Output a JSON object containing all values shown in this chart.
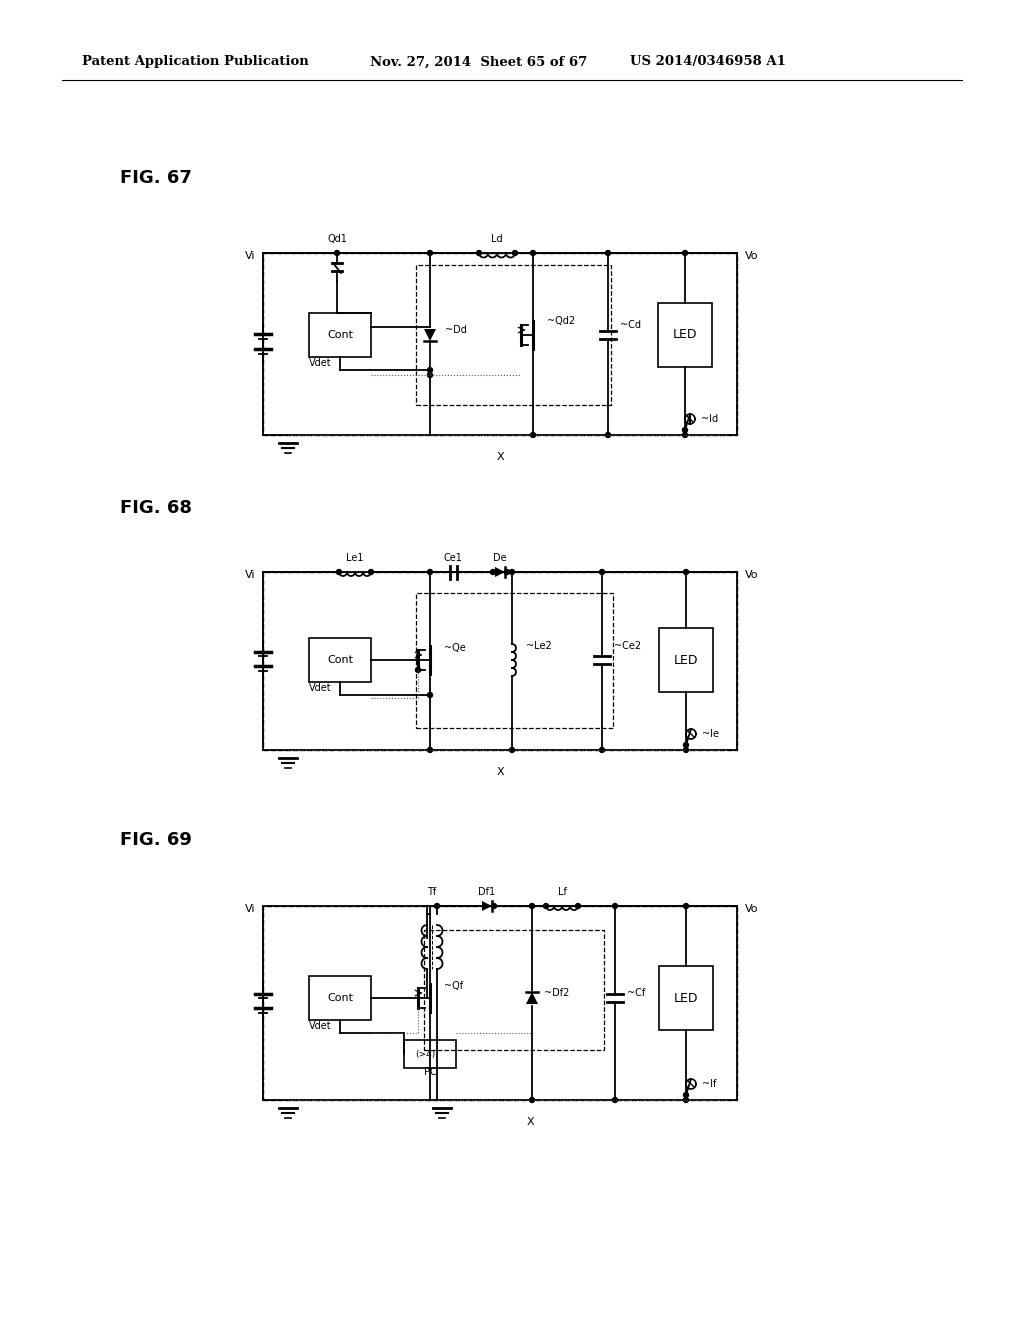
{
  "bg_color": "#ffffff",
  "header_left": "Patent Application Publication",
  "header_mid": "Nov. 27, 2014  Sheet 65 of 67",
  "header_right": "US 2014/0346958 A1",
  "fig67_label": "FIG. 67",
  "fig68_label": "FIG. 68",
  "fig69_label": "FIG. 69"
}
